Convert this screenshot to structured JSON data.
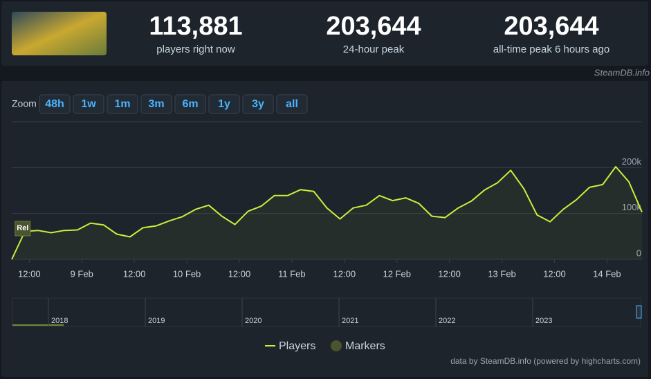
{
  "header": {
    "stats": [
      {
        "value": "113,881",
        "label": "players right now"
      },
      {
        "value": "203,644",
        "label": "24-hour peak"
      },
      {
        "value": "203,644",
        "label": "all-time peak 6 hours ago"
      }
    ],
    "watermark": "SteamDB.info"
  },
  "zoom": {
    "label": "Zoom",
    "buttons": [
      "48h",
      "1w",
      "1m",
      "3m",
      "6m",
      "1y",
      "3y",
      "all"
    ]
  },
  "chart_data": {
    "type": "line",
    "x": [
      "8 Feb 08:00",
      "8 Feb 11:00",
      "8 Feb 14:00",
      "8 Feb 17:00",
      "8 Feb 20:00",
      "8 Feb 23:00",
      "9 Feb 02:00",
      "9 Feb 05:00",
      "9 Feb 08:00",
      "9 Feb 11:00",
      "9 Feb 14:00",
      "9 Feb 17:00",
      "9 Feb 20:00",
      "9 Feb 23:00",
      "10 Feb 02:00",
      "10 Feb 05:00",
      "10 Feb 08:00",
      "10 Feb 11:00",
      "10 Feb 14:00",
      "10 Feb 17:00",
      "10 Feb 20:00",
      "10 Feb 23:00",
      "11 Feb 02:00",
      "11 Feb 05:00",
      "11 Feb 08:00",
      "11 Feb 11:00",
      "11 Feb 14:00",
      "11 Feb 17:00",
      "11 Feb 20:00",
      "11 Feb 23:00",
      "12 Feb 02:00",
      "12 Feb 05:00",
      "12 Feb 08:00",
      "12 Feb 11:00",
      "12 Feb 14:00",
      "12 Feb 17:00",
      "12 Feb 20:00",
      "12 Feb 23:00",
      "13 Feb 02:00",
      "13 Feb 05:00",
      "13 Feb 08:00",
      "13 Feb 11:00",
      "13 Feb 14:00",
      "13 Feb 17:00",
      "13 Feb 20:00",
      "13 Feb 23:00",
      "14 Feb 02:00",
      "14 Feb 05:00",
      "14 Feb 08:00"
    ],
    "series": [
      {
        "name": "Players",
        "color": "#c8f03c",
        "values": [
          0,
          61000,
          63000,
          58000,
          63000,
          64000,
          79000,
          75000,
          55000,
          49000,
          69000,
          73000,
          84000,
          93000,
          109000,
          118000,
          94000,
          76000,
          105000,
          116000,
          139000,
          139000,
          152000,
          148000,
          112000,
          88000,
          112000,
          118000,
          139000,
          128000,
          134000,
          122000,
          94000,
          91000,
          112000,
          127000,
          151000,
          167000,
          194000,
          154000,
          97000,
          82000,
          109000,
          130000,
          157000,
          163000,
          202000,
          169000,
          103000
        ]
      }
    ],
    "xlim": [
      "8 Feb 08:00",
      "14 Feb 08:00"
    ],
    "xticks": [
      {
        "value": "8 Feb 12:00",
        "label": "12:00"
      },
      {
        "value": "9 Feb 00:00",
        "label": "9 Feb"
      },
      {
        "value": "9 Feb 12:00",
        "label": "12:00"
      },
      {
        "value": "10 Feb 00:00",
        "label": "10 Feb"
      },
      {
        "value": "10 Feb 12:00",
        "label": "12:00"
      },
      {
        "value": "11 Feb 00:00",
        "label": "11 Feb"
      },
      {
        "value": "11 Feb 12:00",
        "label": "12:00"
      },
      {
        "value": "12 Feb 00:00",
        "label": "12 Feb"
      },
      {
        "value": "12 Feb 12:00",
        "label": "12:00"
      },
      {
        "value": "13 Feb 00:00",
        "label": "13 Feb"
      },
      {
        "value": "13 Feb 12:00",
        "label": "12:00"
      },
      {
        "value": "14 Feb 00:00",
        "label": "14 Feb"
      }
    ],
    "ylim": [
      0,
      300000
    ],
    "yticks": [
      0,
      {
        "value": 100000,
        "label": "100k"
      },
      {
        "value": 200000,
        "label": "200k"
      }
    ],
    "grid": true,
    "markers": {
      "name": "Markers",
      "color": "#4a5530",
      "items": [
        {
          "label": "Rel",
          "x": "8 Feb 10:30"
        }
      ]
    },
    "navigator": {
      "labels": [
        "2018",
        "2019",
        "2020",
        "2021",
        "2022",
        "2023"
      ]
    }
  },
  "credits": "data by SteamDB.info (powered by highcharts.com)"
}
